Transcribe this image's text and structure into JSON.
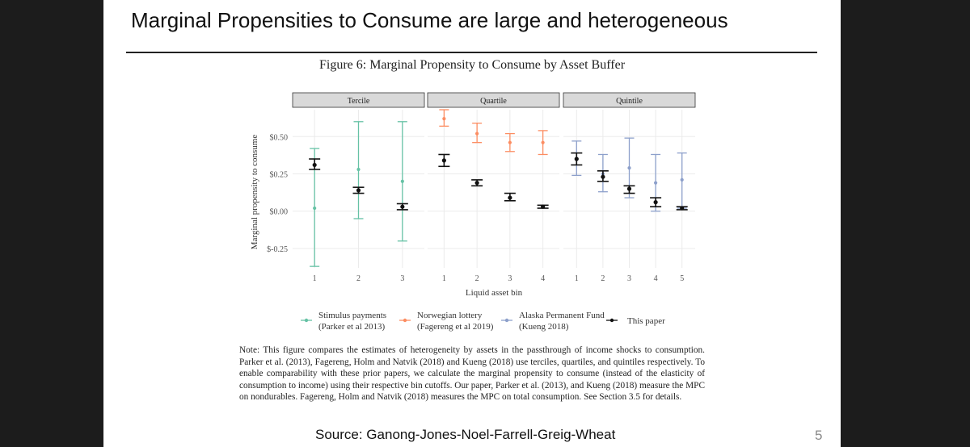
{
  "slide": {
    "title": "Marginal Propensities to Consume are large and heterogeneous",
    "source": "Source: Ganong-Jones-Noel-Farrell-Greig-Wheat",
    "page_number": "5"
  },
  "figure": {
    "caption": "Figure 6: Marginal Propensity to Consume by Asset Buffer",
    "note": "Note: This figure compares the estimates of heterogeneity by assets in the passthrough of income shocks to consumption. Parker et al. (2013), Fagereng, Holm and Natvik (2018) and Kueng (2018) use terciles, quartiles, and quintiles respectively. To enable comparability with these prior papers, we calculate the marginal propensity to consume (instead of the elasticity of consumption to income) using their respective bin cutoffs. Our paper, Parker et al. (2013), and Kueng (2018) measure the MPC on nondurables. Fagereng, Holm and Natvik (2018) measures the MPC on total consumption. See Section 3.5 for details."
  },
  "colors": {
    "stimulus": "#66c2a5",
    "norwegian": "#fc8d62",
    "alaska": "#8da0cb",
    "this_paper": "#111111",
    "strip_fill": "#d9d9d9",
    "grid": "#ebebeb"
  },
  "chart_data": {
    "type": "scatter",
    "subtype": "error-bar point estimates, faceted",
    "xlabel": "Liquid asset bin",
    "ylabel": "Marginal propensity to consume",
    "ylim": [
      -0.38,
      0.68
    ],
    "yticks": [
      -0.25,
      0.0,
      0.25,
      0.5
    ],
    "ytick_labels": [
      "$-0.25",
      "$0.00",
      "$0.25",
      "$0.50"
    ],
    "grid": true,
    "legend_position": "bottom",
    "legend": [
      {
        "name": "Stimulus payments\n(Parker et al 2013)",
        "line1": "Stimulus payments",
        "line2": "(Parker et al 2013)",
        "color": "#66c2a5"
      },
      {
        "name": "Norwegian lottery\n(Fagereng et al 2019)",
        "line1": "Norwegian lottery",
        "line2": "(Fagereng et al 2019)",
        "color": "#fc8d62"
      },
      {
        "name": "Alaska Permanent Fund\n(Kueng 2018)",
        "line1": "Alaska Permanent Fund",
        "line2": "(Kueng 2018)",
        "color": "#8da0cb"
      },
      {
        "name": "This paper",
        "line1": "This paper",
        "line2": "",
        "color": "#111111"
      }
    ],
    "facets": [
      {
        "label": "Tercile",
        "x": [
          1,
          2,
          3
        ],
        "series": [
          {
            "name": "Stimulus payments\n(Parker et al 2013)",
            "color": "#66c2a5",
            "offset": 0,
            "points": [
              {
                "x": 1,
                "y": 0.02,
                "lo": -0.37,
                "hi": 0.42
              },
              {
                "x": 2,
                "y": 0.28,
                "lo": -0.05,
                "hi": 0.6
              },
              {
                "x": 3,
                "y": 0.2,
                "lo": -0.2,
                "hi": 0.6
              }
            ]
          },
          {
            "name": "This paper",
            "color": "#111111",
            "offset": 0,
            "points": [
              {
                "x": 1,
                "y": 0.31,
                "lo": 0.28,
                "hi": 0.35
              },
              {
                "x": 2,
                "y": 0.14,
                "lo": 0.12,
                "hi": 0.16
              },
              {
                "x": 3,
                "y": 0.03,
                "lo": 0.01,
                "hi": 0.05
              }
            ]
          }
        ]
      },
      {
        "label": "Quartile",
        "x": [
          1,
          2,
          3,
          4
        ],
        "series": [
          {
            "name": "Norwegian lottery\n(Fagereng et al 2019)",
            "color": "#fc8d62",
            "offset": 0.12,
            "points": [
              {
                "x": 1,
                "y": 0.62,
                "lo": 0.57,
                "hi": 0.68
              },
              {
                "x": 2,
                "y": 0.52,
                "lo": 0.46,
                "hi": 0.59
              },
              {
                "x": 3,
                "y": 0.46,
                "lo": 0.4,
                "hi": 0.52
              },
              {
                "x": 4,
                "y": 0.46,
                "lo": 0.38,
                "hi": 0.54
              }
            ]
          },
          {
            "name": "This paper",
            "color": "#111111",
            "offset": 0,
            "points": [
              {
                "x": 1,
                "y": 0.34,
                "lo": 0.3,
                "hi": 0.38
              },
              {
                "x": 2,
                "y": 0.19,
                "lo": 0.17,
                "hi": 0.21
              },
              {
                "x": 3,
                "y": 0.09,
                "lo": 0.07,
                "hi": 0.12
              },
              {
                "x": 4,
                "y": 0.03,
                "lo": 0.02,
                "hi": 0.04
              }
            ]
          }
        ]
      },
      {
        "label": "Quintile",
        "x": [
          1,
          2,
          3,
          4,
          5
        ],
        "series": [
          {
            "name": "Alaska Permanent Fund\n(Kueng 2018)",
            "color": "#8da0cb",
            "offset": 0,
            "points": [
              {
                "x": 1,
                "y": 0.35,
                "lo": 0.24,
                "hi": 0.47
              },
              {
                "x": 2,
                "y": 0.25,
                "lo": 0.13,
                "hi": 0.38
              },
              {
                "x": 3,
                "y": 0.29,
                "lo": 0.09,
                "hi": 0.49
              },
              {
                "x": 4,
                "y": 0.19,
                "lo": 0.0,
                "hi": 0.38
              },
              {
                "x": 5,
                "y": 0.21,
                "lo": 0.02,
                "hi": 0.39
              }
            ]
          },
          {
            "name": "This paper",
            "color": "#111111",
            "offset": 0,
            "points": [
              {
                "x": 1,
                "y": 0.35,
                "lo": 0.31,
                "hi": 0.39
              },
              {
                "x": 2,
                "y": 0.23,
                "lo": 0.2,
                "hi": 0.27
              },
              {
                "x": 3,
                "y": 0.15,
                "lo": 0.12,
                "hi": 0.17
              },
              {
                "x": 4,
                "y": 0.06,
                "lo": 0.03,
                "hi": 0.09
              },
              {
                "x": 5,
                "y": 0.02,
                "lo": 0.01,
                "hi": 0.03
              }
            ]
          }
        ]
      }
    ]
  }
}
